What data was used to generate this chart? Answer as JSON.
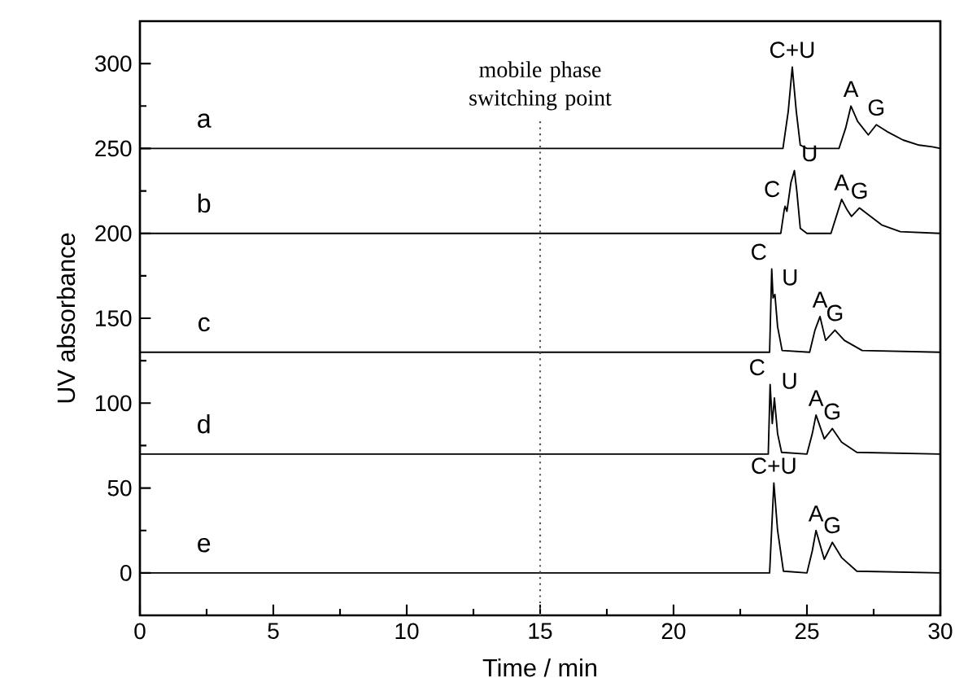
{
  "chart_data": {
    "type": "line",
    "xlabel": "Time / min",
    "ylabel": "UV absorbance",
    "xlim": [
      0,
      30
    ],
    "ylim": [
      -25,
      325
    ],
    "xticks": [
      0,
      5,
      10,
      15,
      20,
      25,
      30
    ],
    "yticks": [
      0,
      50,
      100,
      150,
      200,
      250,
      300
    ],
    "grid": false,
    "legend": "left",
    "marker": "none",
    "line_style": "solid",
    "series": [
      {
        "name": "a",
        "color": "#000000",
        "x": [
          0,
          24.1,
          24.3,
          24.45,
          24.6,
          24.75,
          25.0,
          26.2,
          26.45,
          26.65,
          26.9,
          27.3,
          27.6,
          28.0,
          28.6,
          29.2,
          29.7,
          30
        ],
        "values": [
          250,
          250,
          272,
          298,
          272,
          252,
          250,
          250,
          262,
          275,
          266,
          258,
          264,
          260,
          255,
          252,
          251,
          250
        ]
      },
      {
        "name": "b",
        "color": "#000000",
        "x": [
          0,
          24.02,
          24.15,
          24.18,
          24.25,
          24.4,
          24.53,
          24.62,
          24.75,
          25.0,
          25.9,
          26.1,
          26.3,
          26.5,
          26.67,
          26.97,
          27.3,
          27.8,
          28.5,
          30
        ],
        "values": [
          200,
          200,
          214,
          216,
          213,
          230,
          237,
          225,
          203,
          200,
          200,
          210,
          220,
          214,
          210,
          215,
          211,
          205,
          201,
          200
        ]
      },
      {
        "name": "c",
        "color": "#000000",
        "x": [
          0,
          23.6,
          23.68,
          23.73,
          23.8,
          23.9,
          24.07,
          25.1,
          25.3,
          25.49,
          25.7,
          26.05,
          26.4,
          27.07,
          30
        ],
        "values": [
          130,
          130,
          179,
          162,
          164,
          145,
          131,
          130,
          143,
          151,
          137,
          143,
          137,
          131,
          130
        ]
      },
      {
        "name": "d",
        "color": "#000000",
        "x": [
          0,
          23.55,
          23.62,
          23.7,
          23.78,
          23.9,
          24.05,
          25.0,
          25.2,
          25.34,
          25.65,
          25.95,
          26.3,
          26.87,
          30
        ],
        "values": [
          70,
          70,
          111,
          88,
          103,
          82,
          71,
          70,
          82,
          93,
          79,
          85,
          77,
          71,
          70
        ]
      },
      {
        "name": "e",
        "color": "#000000",
        "x": [
          0,
          23.6,
          23.76,
          23.9,
          24.12,
          25.0,
          25.2,
          25.34,
          25.65,
          25.95,
          26.3,
          26.87,
          30
        ],
        "values": [
          0,
          0,
          53,
          25,
          1,
          0,
          13,
          25,
          8,
          18,
          9,
          1,
          0
        ]
      }
    ],
    "ref_lines": [
      {
        "axis": "x",
        "value": 15,
        "label": "mobile phase switching point",
        "line_style": "dotted",
        "color": "#555555"
      }
    ],
    "annotations": [
      {
        "text": "C+U",
        "x": 24.45,
        "y": 298
      },
      {
        "text": "A",
        "x": 26.65,
        "y": 275
      },
      {
        "text": "G",
        "x": 27.6,
        "y": 264
      },
      {
        "text": "C",
        "x": 24.18,
        "y": 216
      },
      {
        "text": "U",
        "x": 24.53,
        "y": 237
      },
      {
        "text": "A",
        "x": 26.3,
        "y": 220
      },
      {
        "text": "G",
        "x": 26.97,
        "y": 215
      },
      {
        "text": "C",
        "x": 23.68,
        "y": 179
      },
      {
        "text": "U",
        "x": 23.8,
        "y": 164
      },
      {
        "text": "A",
        "x": 25.49,
        "y": 151
      },
      {
        "text": "G",
        "x": 26.05,
        "y": 143
      },
      {
        "text": "C",
        "x": 23.62,
        "y": 111
      },
      {
        "text": "U",
        "x": 23.78,
        "y": 103
      },
      {
        "text": "A",
        "x": 25.34,
        "y": 93
      },
      {
        "text": "G",
        "x": 25.95,
        "y": 85
      },
      {
        "text": "C+U",
        "x": 23.76,
        "y": 53
      },
      {
        "text": "A",
        "x": 25.34,
        "y": 25
      },
      {
        "text": "G",
        "x": 25.95,
        "y": 18
      }
    ]
  }
}
